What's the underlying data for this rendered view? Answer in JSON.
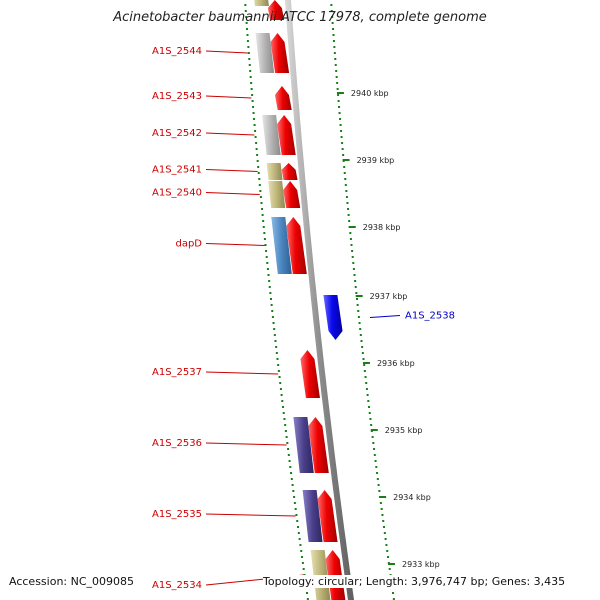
{
  "header": {
    "title": "Acinetobacter baumannii ATCC 17978, complete genome"
  },
  "footer": {
    "accession": "Accession: NC_009085",
    "summary": "Topology: circular; Length: 3,976,747 bp; Genes: 3,435"
  },
  "colors": {
    "forward_gene": "#ee0000",
    "reverse_gene": "#0a0aee",
    "label_forward": "#cc0000",
    "label_reverse": "#0000cc",
    "tick": "#1a7f1a",
    "backbone": "#909090",
    "cog_grey": "#b4b4b4",
    "cog_olive": "#bdb57a",
    "cog_steelblue": "#4a86c0",
    "cog_purple": "#4a3f8a"
  },
  "scale": {
    "labels": [
      "2940 kbp",
      "2939 kbp",
      "2938 kbp",
      "2937 kbp",
      "2936 kbp",
      "2935 kbp",
      "2934 kbp",
      "2933 kbp"
    ]
  },
  "genes": [
    {
      "name": "A1S_2544",
      "strand": "forward",
      "cog": "grey"
    },
    {
      "name": "A1S_2543",
      "strand": "forward",
      "cog": "none"
    },
    {
      "name": "A1S_2542",
      "strand": "forward",
      "cog": "grey"
    },
    {
      "name": "A1S_2541",
      "strand": "forward",
      "cog": "olive"
    },
    {
      "name": "A1S_2540",
      "strand": "forward",
      "cog": "olive"
    },
    {
      "name": "dapD",
      "strand": "forward",
      "cog": "steelblue"
    },
    {
      "name": "A1S_2538",
      "strand": "reverse",
      "cog": "none"
    },
    {
      "name": "A1S_2537",
      "strand": "forward",
      "cog": "none"
    },
    {
      "name": "A1S_2536",
      "strand": "forward",
      "cog": "purple"
    },
    {
      "name": "A1S_2535",
      "strand": "forward",
      "cog": "purple"
    },
    {
      "name": "A1S_2534",
      "strand": "forward",
      "cog": "olive"
    }
  ]
}
